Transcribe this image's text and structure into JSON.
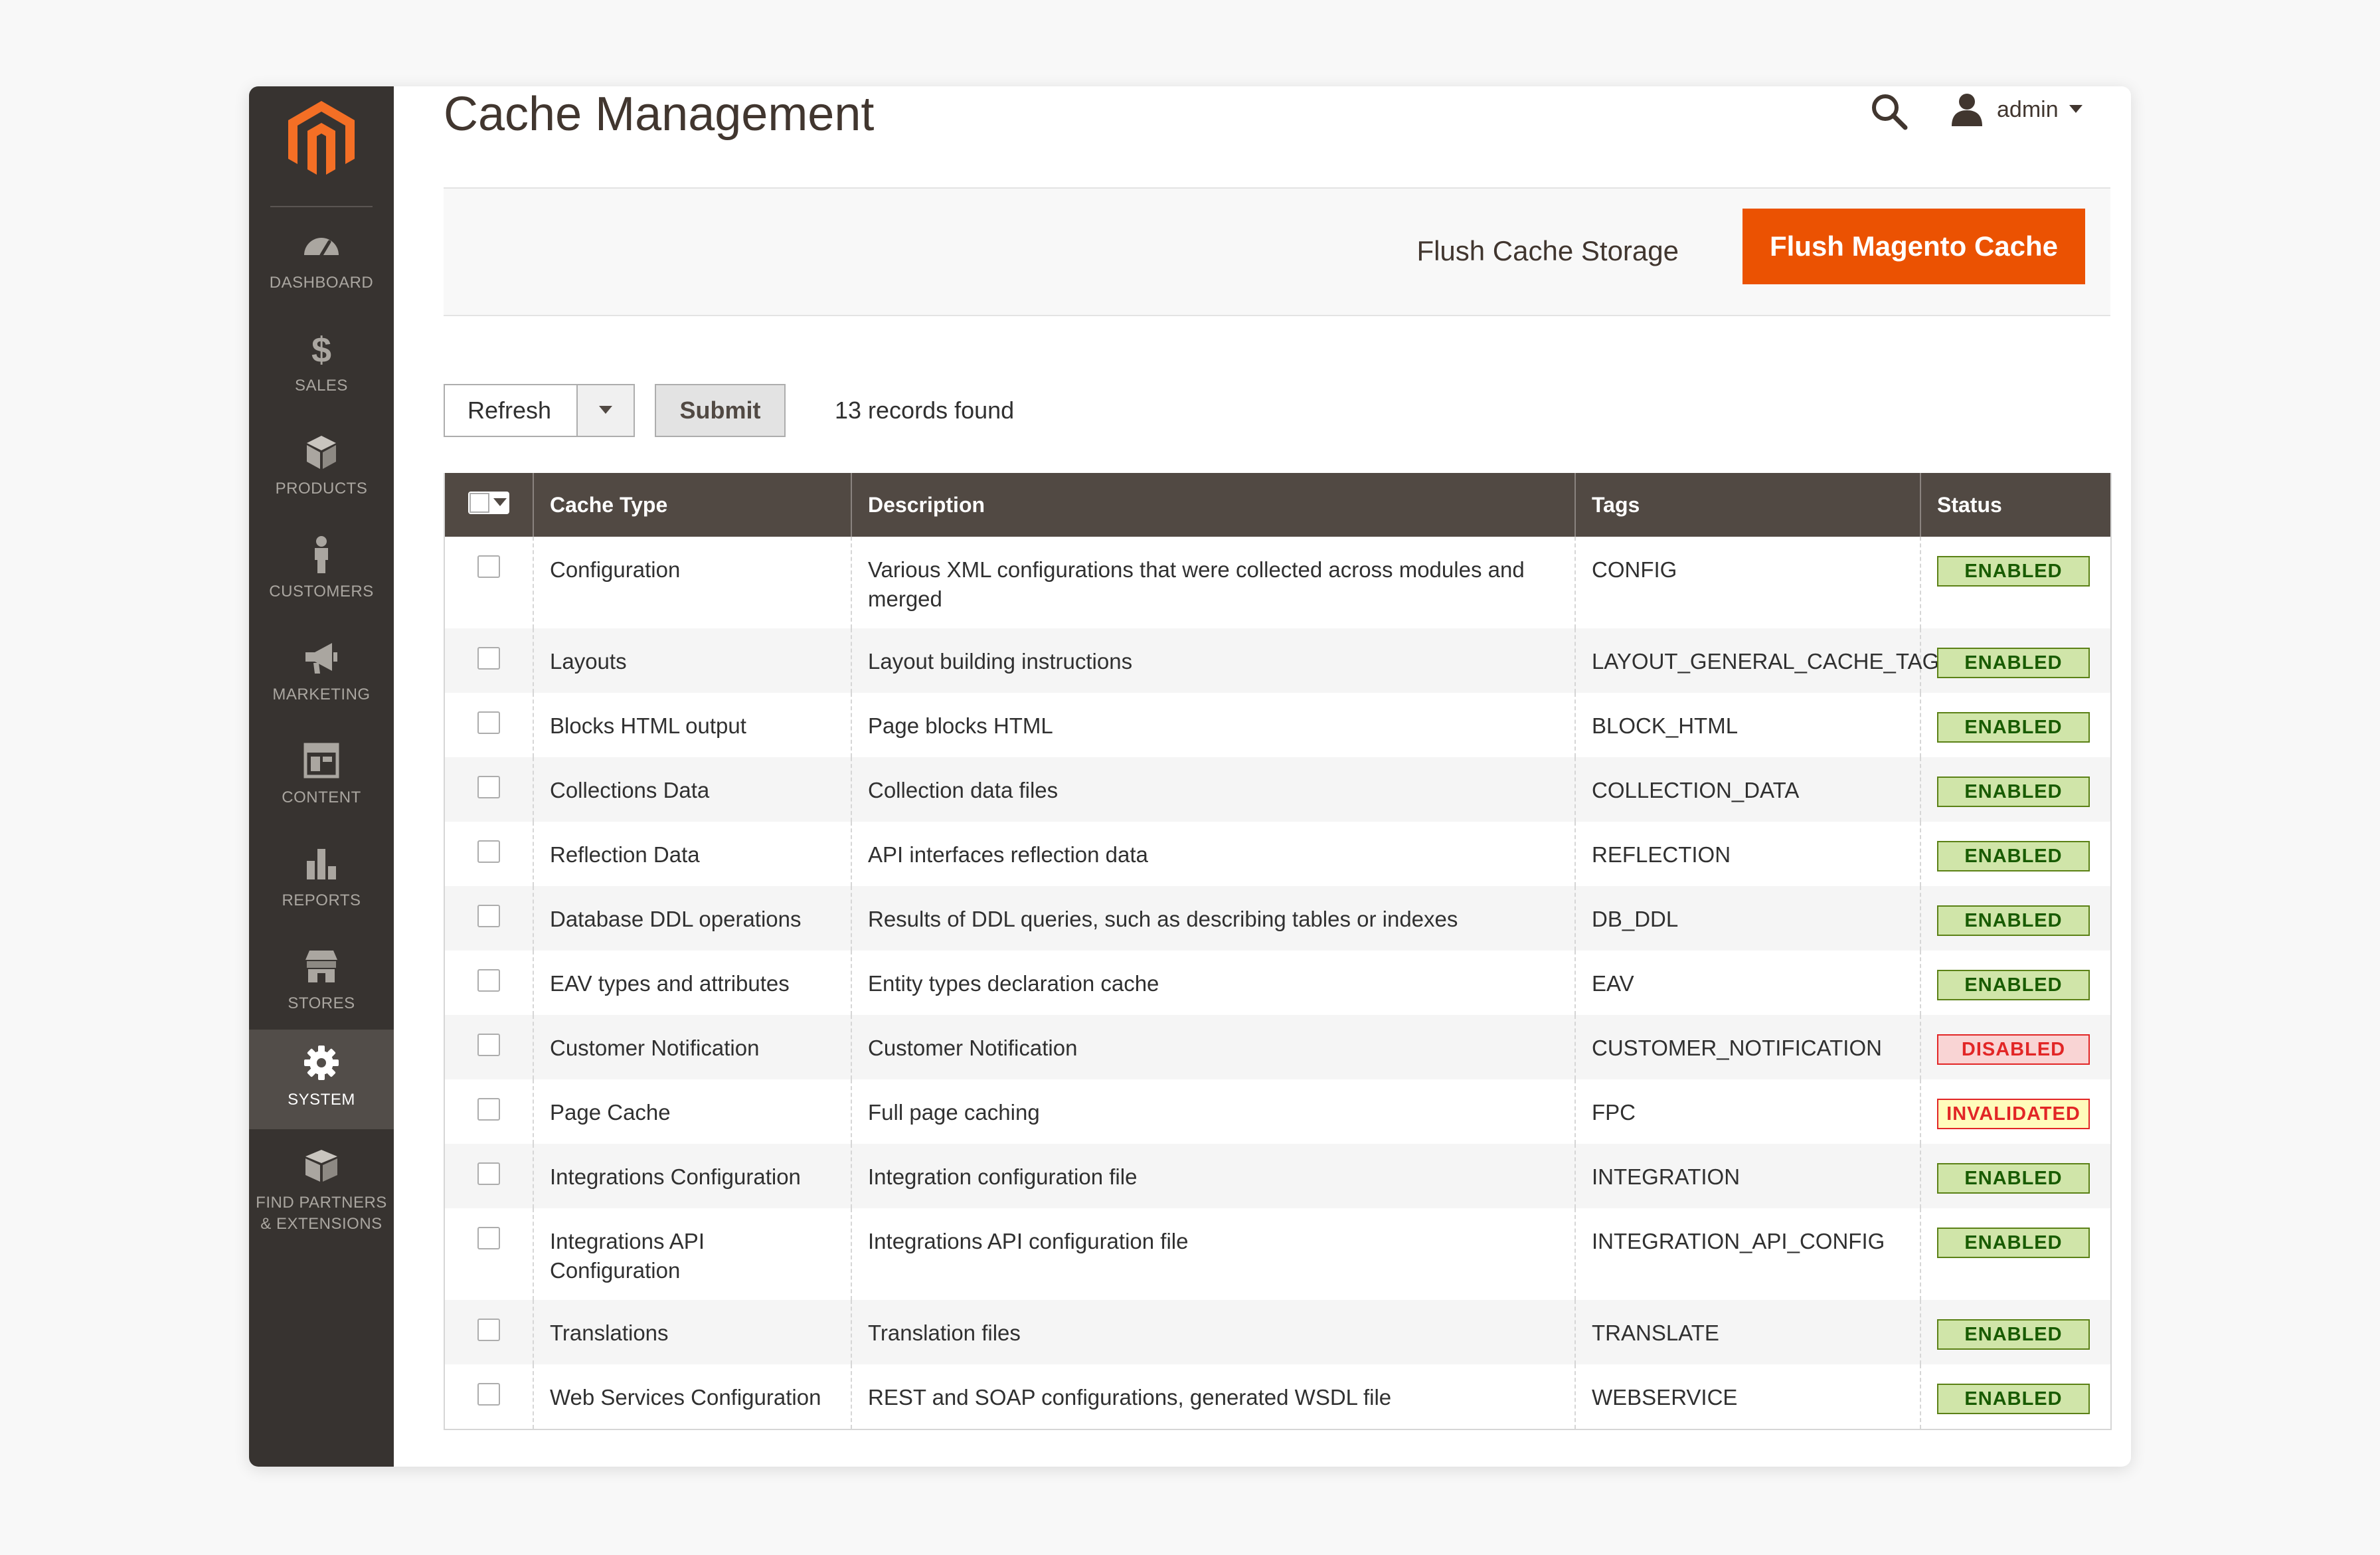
{
  "sidebar": {
    "items": [
      {
        "label": "Dashboard",
        "icon": "dashboard-icon"
      },
      {
        "label": "Sales",
        "icon": "dollar-icon"
      },
      {
        "label": "Products",
        "icon": "cube-icon"
      },
      {
        "label": "Customers",
        "icon": "person-icon"
      },
      {
        "label": "Marketing",
        "icon": "megaphone-icon"
      },
      {
        "label": "Content",
        "icon": "layout-icon"
      },
      {
        "label": "Reports",
        "icon": "bar-chart-icon"
      },
      {
        "label": "Stores",
        "icon": "storefront-icon"
      },
      {
        "label": "System",
        "icon": "gear-icon",
        "active": true
      },
      {
        "label": "Find Partners\n& Extensions",
        "icon": "box-icon"
      }
    ]
  },
  "header": {
    "title": "Cache Management",
    "user": "admin"
  },
  "actions": {
    "flush_storage": "Flush Cache Storage",
    "flush_magento": "Flush Magento Cache"
  },
  "grid_controls": {
    "mass_action": "Refresh",
    "submit": "Submit",
    "records": "13 records found"
  },
  "table": {
    "columns": [
      "Cache Type",
      "Description",
      "Tags",
      "Status"
    ],
    "rows": [
      {
        "type": "Configuration",
        "description": "Various XML configurations that were collected across modules and merged",
        "tags": "CONFIG",
        "status": "ENABLED"
      },
      {
        "type": "Layouts",
        "description": "Layout building instructions",
        "tags": "LAYOUT_GENERAL_CACHE_TAG",
        "status": "ENABLED"
      },
      {
        "type": "Blocks HTML output",
        "description": "Page blocks HTML",
        "tags": "BLOCK_HTML",
        "status": "ENABLED"
      },
      {
        "type": "Collections Data",
        "description": "Collection data files",
        "tags": "COLLECTION_DATA",
        "status": "ENABLED"
      },
      {
        "type": "Reflection Data",
        "description": "API interfaces reflection data",
        "tags": "REFLECTION",
        "status": "ENABLED"
      },
      {
        "type": "Database DDL operations",
        "description": "Results of DDL queries, such as describing tables or indexes",
        "tags": "DB_DDL",
        "status": "ENABLED"
      },
      {
        "type": "EAV types and attributes",
        "description": "Entity types declaration cache",
        "tags": "EAV",
        "status": "ENABLED"
      },
      {
        "type": "Customer Notification",
        "description": "Customer Notification",
        "tags": "CUSTOMER_NOTIFICATION",
        "status": "DISABLED"
      },
      {
        "type": "Page Cache",
        "description": "Full page caching",
        "tags": "FPC",
        "status": "INVALIDATED"
      },
      {
        "type": "Integrations Configuration",
        "description": "Integration configuration file",
        "tags": "INTEGRATION",
        "status": "ENABLED"
      },
      {
        "type": "Integrations API Configuration",
        "description": "Integrations API configuration file",
        "tags": "INTEGRATION_API_CONFIG",
        "status": "ENABLED"
      },
      {
        "type": "Translations",
        "description": "Translation files",
        "tags": "TRANSLATE",
        "status": "ENABLED"
      },
      {
        "type": "Web Services Configuration",
        "description": "REST and SOAP configurations, generated WSDL file",
        "tags": "WEBSERVICE",
        "status": "ENABLED"
      }
    ]
  },
  "colors": {
    "brand": "#eb5202",
    "sidebar": "#373330",
    "table_header": "#514943",
    "enabled": "#185b00",
    "disabled": "#e22626"
  }
}
